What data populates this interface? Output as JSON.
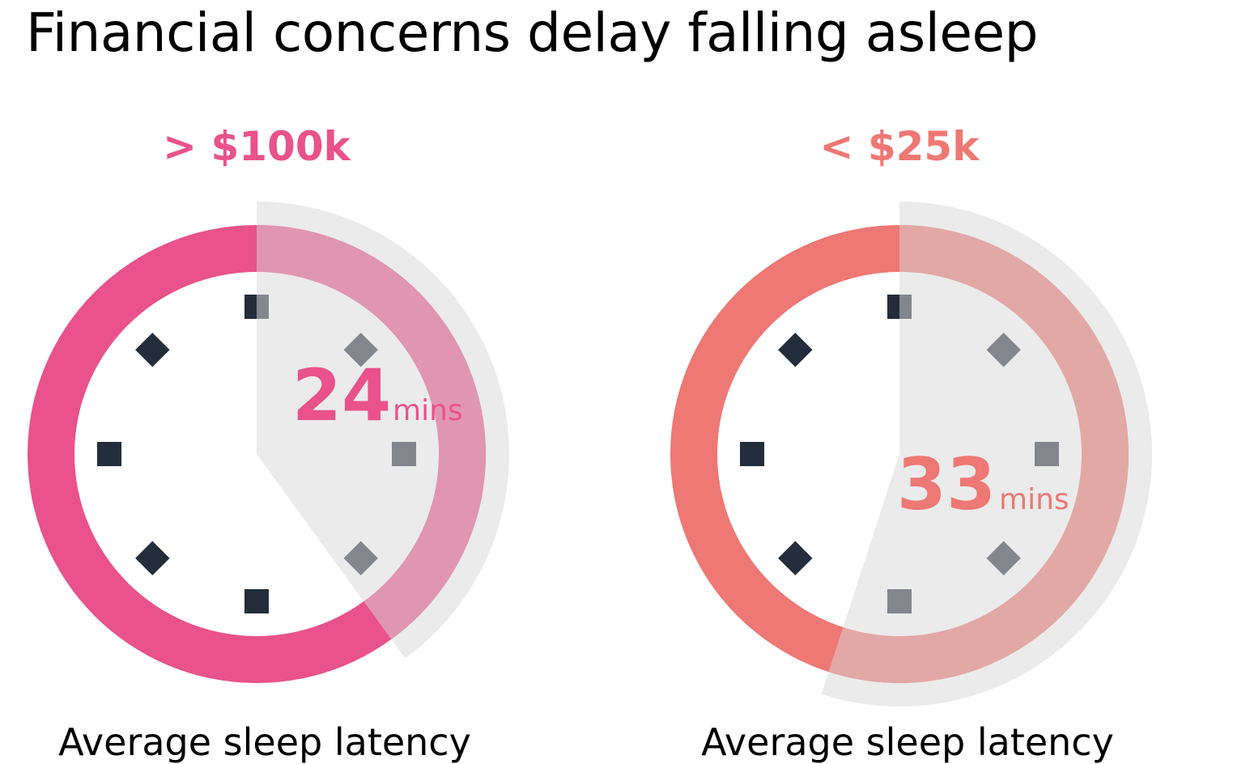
{
  "title": "Financial concerns delay falling asleep",
  "chart_data": [
    {
      "type": "pie",
      "group_label": "> $100k",
      "value": 24,
      "total": 60,
      "value_text": "24",
      "unit": "mins",
      "caption": "Average sleep latency",
      "colors": {
        "accent": "#E9528A",
        "wedge_ring": "#E096B0",
        "wedge": "#EBEBEB",
        "outer_ring": "#EBEBEB"
      }
    },
    {
      "type": "pie",
      "group_label": "< $25k",
      "value": 33,
      "total": 60,
      "value_text": "33",
      "unit": "mins",
      "caption": "Average sleep latency",
      "colors": {
        "accent": "#EE7874",
        "wedge_ring": "#E2A8A5",
        "wedge": "#EBEBEB",
        "outer_ring": "#EBEBEB"
      }
    }
  ],
  "colors": {
    "marker_dark": "#232D3B",
    "marker_gray": "#83868D"
  }
}
